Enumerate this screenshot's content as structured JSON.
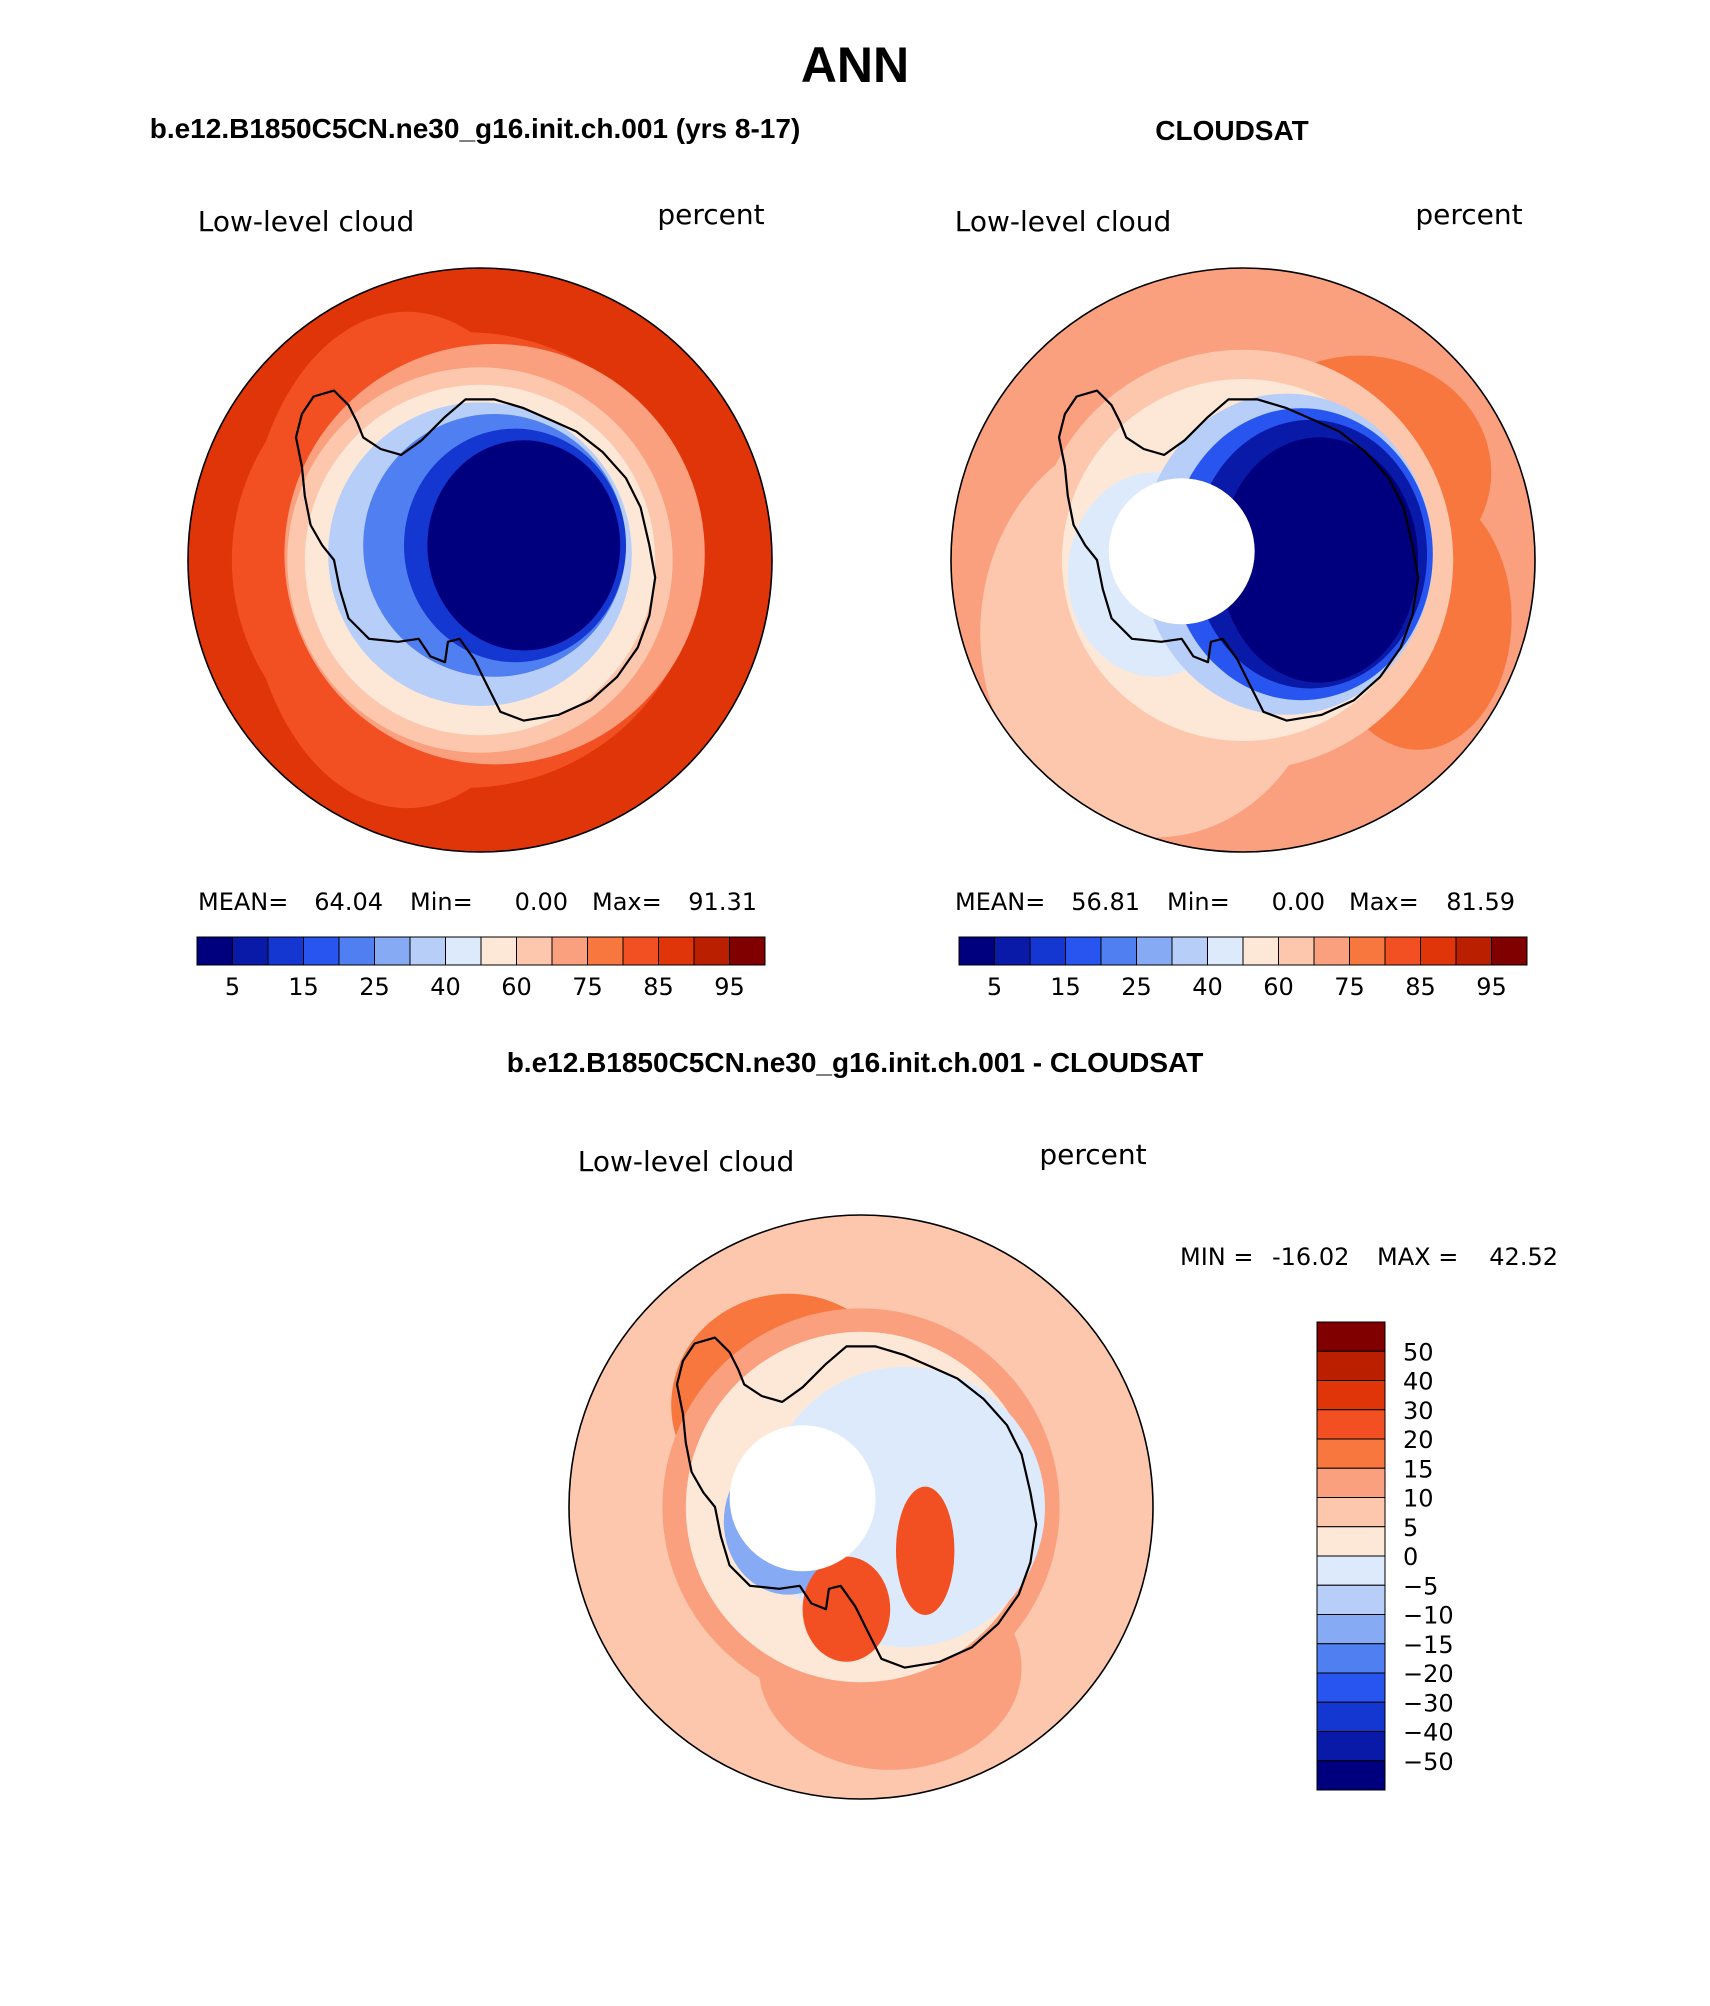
{
  "page_title": "ANN",
  "panel_titles": {
    "model": "b.e12.B1850C5CN.ne30_g16.init.ch.001 (yrs 8-17)",
    "obs": "CLOUDSAT",
    "diff": "b.e12.B1850C5CN.ne30_g16.init.ch.001 - CLOUDSAT"
  },
  "colors": {
    "abs_scale": [
      "#00007f",
      "#0a1aa8",
      "#1437d2",
      "#2855f0",
      "#4f7ff0",
      "#86aaf4",
      "#b6cef8",
      "#dceafb",
      "#fde8d8",
      "#fcc7ad",
      "#faa07f",
      "#f7773f",
      "#f25022",
      "#e03409",
      "#ba2000",
      "#800000"
    ],
    "diff_scale": [
      "#00007f",
      "#0a1aa8",
      "#1437d2",
      "#2855f0",
      "#4f7ff0",
      "#86aaf4",
      "#b6cef8",
      "#dceafb",
      "#fde8d8",
      "#fcc7ad",
      "#faa07f",
      "#f7773f",
      "#f25022",
      "#e03409",
      "#ba2000",
      "#800000"
    ],
    "land_outline": "#000000"
  },
  "chart_data": [
    {
      "type": "heatmap",
      "projection": "south polar stereographic",
      "title": "b.e12.B1850C5CN.ne30_g16.init.ch.001 (yrs 8-17)",
      "variable": "Low-level cloud",
      "units": "percent",
      "stats": {
        "mean_label": "MEAN=",
        "mean": "64.04",
        "min_label": "Min=",
        "min": "0.00",
        "max_label": "Max=",
        "max": "91.31"
      },
      "contour_levels": [
        5,
        10,
        15,
        20,
        25,
        30,
        40,
        50,
        60,
        70,
        75,
        80,
        85,
        90,
        95
      ],
      "colorbar_tick_labels": [
        "5",
        "15",
        "25",
        "40",
        "60",
        "75",
        "85",
        "95"
      ],
      "field": {
        "pole": 5,
        "antarctic_interior": 2,
        "antarctic_coast": 40,
        "coastal_ring": 70,
        "open_ocean": 85,
        "storm_track_max": 91
      }
    },
    {
      "type": "heatmap",
      "projection": "south polar stereographic",
      "title": "CLOUDSAT",
      "variable": "Low-level cloud",
      "units": "percent",
      "stats": {
        "mean_label": "MEAN=",
        "mean": "56.81",
        "min_label": "Min=",
        "min": "0.00",
        "max_label": "Max=",
        "max": "81.59"
      },
      "contour_levels": [
        5,
        10,
        15,
        20,
        25,
        30,
        40,
        50,
        60,
        70,
        75,
        80,
        85,
        90,
        95
      ],
      "colorbar_tick_labels": [
        "5",
        "15",
        "25",
        "40",
        "60",
        "75",
        "85",
        "95"
      ],
      "missing_data_region": "pole poleward of ~82S",
      "field": {
        "antarctic_interior": 3,
        "antarctic_coast": 35,
        "coastal_ring": 60,
        "open_ocean": 70,
        "storm_track_max": 81
      }
    },
    {
      "type": "heatmap",
      "projection": "south polar stereographic",
      "title": "b.e12.B1850C5CN.ne30_g16.init.ch.001 - CLOUDSAT",
      "variable": "Low-level cloud",
      "units": "percent",
      "stats": {
        "min_label": "MIN =",
        "min": "-16.02",
        "max_label": "MAX =",
        "max": "42.52"
      },
      "contour_levels": [
        -50,
        -40,
        -30,
        -20,
        -15,
        -10,
        -5,
        0,
        5,
        10,
        15,
        20,
        30,
        40,
        50
      ],
      "colorbar_tick_labels": [
        "50",
        "40",
        "30",
        "20",
        "15",
        "10",
        "5",
        "0",
        "−5",
        "−10",
        "−15",
        "−20",
        "−30",
        "−40",
        "−50"
      ],
      "missing_data_region": "pole poleward of ~82S",
      "field": {
        "antarctic_interior": -3,
        "antarctic_coast": -8,
        "coastal_ring": 12,
        "open_ocean": 8,
        "storm_track_max": 25
      }
    }
  ]
}
